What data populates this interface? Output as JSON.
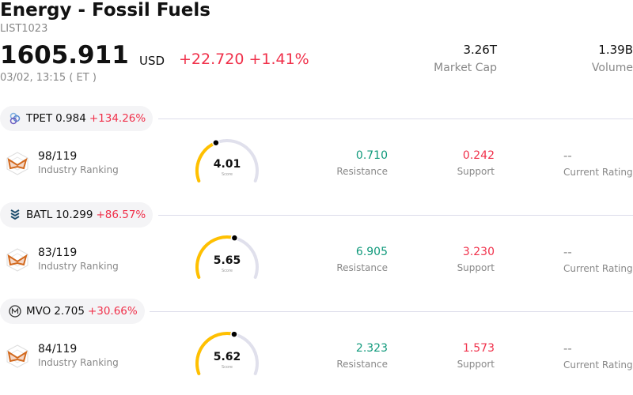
{
  "header": {
    "title": "Energy - Fossil Fuels",
    "code": "LIST1023",
    "price": "1605.911",
    "currency": "USD",
    "change": "+22.720",
    "change_pct": "+1.41%",
    "time": "03/02, 13:15  ( ET )"
  },
  "stats": [
    {
      "value": "3.26T",
      "label": "Market Cap"
    },
    {
      "value": "1.39B",
      "label": "Volume"
    }
  ],
  "colors": {
    "up": "#f0304a",
    "green": "#119a7c",
    "gauge": "#ffc000",
    "track": "#e0e0ec"
  },
  "stocks": [
    {
      "ticker": "TPET",
      "price": "0.984",
      "change": "+134.26%",
      "icon": "interlocking-circles-logo-icon",
      "rank": "98/119",
      "rank_label": "Industry Ranking",
      "score": 4.01,
      "score_text": "4.01",
      "score_label": "Score",
      "resistance": "0.710",
      "resistance_label": "Resistance",
      "support": "0.242",
      "support_label": "Support",
      "rating": "--",
      "rating_label": "Current Rating"
    },
    {
      "ticker": "BATL",
      "price": "10.299",
      "change": "+86.57%",
      "icon": "chevron-stack-logo-icon",
      "rank": "83/119",
      "rank_label": "Industry Ranking",
      "score": 5.65,
      "score_text": "5.65",
      "score_label": "Score",
      "resistance": "6.905",
      "resistance_label": "Resistance",
      "support": "3.230",
      "support_label": "Support",
      "rating": "--",
      "rating_label": "Current Rating"
    },
    {
      "ticker": "MVO",
      "price": "2.705",
      "change": "+30.66%",
      "icon": "m-circle-logo-icon",
      "rank": "84/119",
      "rank_label": "Industry Ranking",
      "score": 5.62,
      "score_text": "5.62",
      "score_label": "Score",
      "resistance": "2.323",
      "resistance_label": "Resistance",
      "support": "1.573",
      "support_label": "Support",
      "rating": "--",
      "rating_label": "Current Rating"
    }
  ]
}
